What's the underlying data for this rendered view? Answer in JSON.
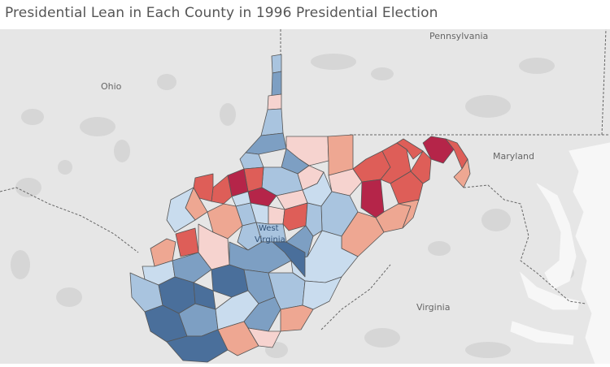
{
  "title": "Presidential Lean in Each County in 1996 Presidential Election",
  "labels": {
    "pennsylvania": "Pennsylvania",
    "ohio": "Ohio",
    "maryland": "Maryland",
    "virginia": "Virginia",
    "west": "West",
    "virginia_inner": "Virginia"
  },
  "colors": {
    "background": "#e6e6e6",
    "water": "#f7f7f7",
    "urban": "#d4d4d4",
    "border": "#555555",
    "strong_dem": "#4a6f9b",
    "dem": "#7d9fc3",
    "lean_dem": "#a9c4df",
    "slight_dem": "#c9dcee",
    "slight_rep": "#f6d3cf",
    "lean_rep": "#eea792",
    "rep": "#de5e58",
    "strong_rep": "#b52549"
  }
}
